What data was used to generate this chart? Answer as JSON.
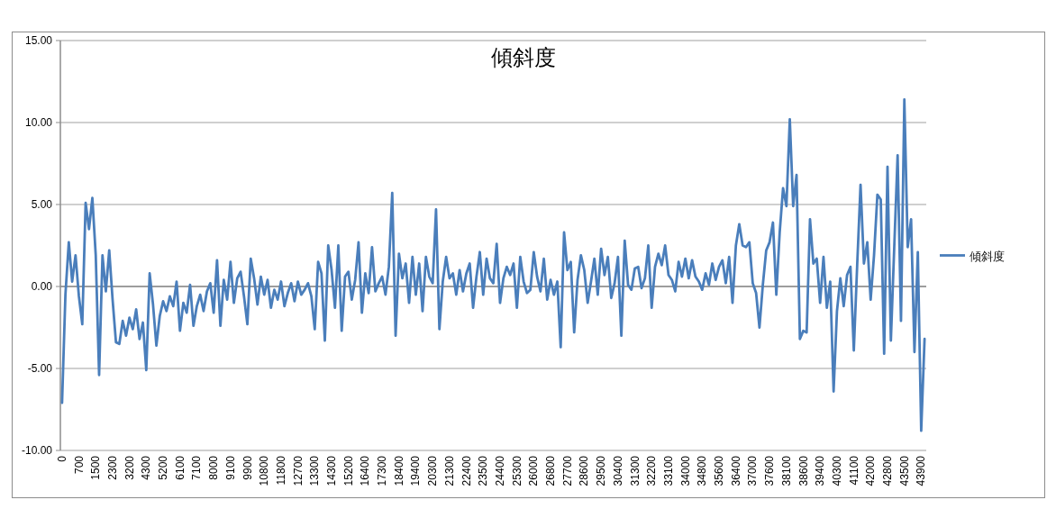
{
  "chart_data": {
    "type": "line",
    "title": "傾斜度",
    "categories": [
      "0",
      null,
      null,
      null,
      null,
      "700",
      null,
      null,
      null,
      null,
      "1500",
      null,
      null,
      null,
      null,
      "2300",
      null,
      null,
      null,
      null,
      "3200",
      null,
      null,
      null,
      null,
      "4300",
      null,
      null,
      null,
      null,
      "5200",
      null,
      null,
      null,
      null,
      "6100",
      null,
      null,
      null,
      null,
      "7100",
      null,
      null,
      null,
      null,
      "8000",
      null,
      null,
      null,
      null,
      "9100",
      null,
      null,
      null,
      null,
      "9900",
      null,
      null,
      null,
      null,
      "10800",
      null,
      null,
      null,
      null,
      "11800",
      null,
      null,
      null,
      null,
      "12700",
      null,
      null,
      null,
      null,
      "13300",
      null,
      null,
      null,
      null,
      "14300",
      null,
      null,
      null,
      null,
      "15200",
      null,
      null,
      null,
      null,
      "16400",
      null,
      null,
      null,
      null,
      "17300",
      null,
      null,
      null,
      null,
      "18400",
      null,
      null,
      null,
      null,
      "19400",
      null,
      null,
      null,
      null,
      "20300",
      null,
      null,
      null,
      null,
      "21300",
      null,
      null,
      null,
      null,
      "22400",
      null,
      null,
      null,
      null,
      "23500",
      null,
      null,
      null,
      null,
      "24400",
      null,
      null,
      null,
      null,
      "25300",
      null,
      null,
      null,
      null,
      "26000",
      null,
      null,
      null,
      null,
      "26800",
      null,
      null,
      null,
      null,
      "27700",
      null,
      null,
      null,
      null,
      "28600",
      null,
      null,
      null,
      null,
      "29500",
      null,
      null,
      null,
      null,
      "30400",
      null,
      null,
      null,
      null,
      "31300",
      null,
      null,
      null,
      null,
      "32200",
      null,
      null,
      null,
      null,
      "33100",
      null,
      null,
      null,
      null,
      "34000",
      null,
      null,
      null,
      null,
      "34800",
      null,
      null,
      null,
      null,
      "35600",
      null,
      null,
      null,
      null,
      "36400",
      null,
      null,
      null,
      null,
      "37000",
      null,
      null,
      null,
      null,
      "37600",
      null,
      null,
      null,
      null,
      "38100",
      null,
      null,
      null,
      null,
      "38600",
      null,
      null,
      null,
      null,
      "39400",
      null,
      null,
      null,
      null,
      "40300",
      null,
      null,
      null,
      null,
      "41100",
      null,
      null,
      null,
      null,
      "42000",
      null,
      null,
      null,
      null,
      "42800",
      null,
      null,
      null,
      null,
      "43500",
      null,
      null,
      null,
      null,
      "43900",
      null
    ],
    "series": [
      {
        "name": "傾斜度",
        "color": "#4a7ebb",
        "values": [
          -7.1,
          -0.5,
          2.7,
          0.3,
          1.9,
          -0.6,
          -2.3,
          5.1,
          3.5,
          5.4,
          1.9,
          -5.4,
          1.9,
          -0.3,
          2.2,
          -0.8,
          -3.4,
          -3.5,
          -2.1,
          -3.0,
          -1.9,
          -2.6,
          -1.4,
          -3.2,
          -2.2,
          -5.1,
          0.8,
          -1.1,
          -3.6,
          -1.8,
          -0.9,
          -1.5,
          -0.6,
          -1.2,
          0.3,
          -2.7,
          -1.0,
          -1.6,
          0.1,
          -2.4,
          -1.2,
          -0.5,
          -1.5,
          -0.3,
          0.2,
          -1.6,
          1.6,
          -2.4,
          0.4,
          -0.8,
          1.5,
          -1.0,
          0.5,
          0.9,
          -0.6,
          -2.3,
          1.7,
          0.5,
          -1.1,
          0.6,
          -0.5,
          0.4,
          -1.3,
          -0.2,
          -0.8,
          0.3,
          -1.2,
          -0.4,
          0.2,
          -0.9,
          0.3,
          -0.5,
          -0.2,
          0.2,
          -0.6,
          -2.6,
          1.5,
          0.8,
          -3.3,
          2.5,
          1.0,
          -1.3,
          2.5,
          -2.7,
          0.6,
          0.9,
          -0.8,
          0.4,
          2.7,
          -1.6,
          0.8,
          -0.4,
          2.4,
          -0.3,
          0.2,
          0.6,
          -0.5,
          1.2,
          5.7,
          -3.0,
          2.0,
          0.5,
          1.4,
          -1.0,
          1.8,
          -0.5,
          1.4,
          -1.5,
          1.8,
          0.6,
          0.2,
          4.7,
          -2.6,
          0.3,
          1.8,
          0.5,
          0.8,
          -0.5,
          1.0,
          -0.3,
          0.8,
          1.4,
          -1.3,
          0.6,
          2.1,
          -0.5,
          1.7,
          0.5,
          0.2,
          2.6,
          -1.0,
          0.5,
          1.2,
          0.7,
          1.4,
          -1.3,
          1.8,
          0.3,
          -0.4,
          -0.2,
          2.1,
          0.6,
          -0.3,
          1.7,
          -0.8,
          0.4,
          -0.5,
          0.3,
          -3.7,
          3.3,
          1.0,
          1.5,
          -2.8,
          0.4,
          1.9,
          1.0,
          -1.0,
          0.3,
          1.7,
          -0.5,
          2.3,
          0.7,
          1.8,
          -0.7,
          0.2,
          1.8,
          -3.0,
          2.8,
          0.1,
          -0.2,
          1.1,
          1.2,
          -0.1,
          0.5,
          2.5,
          -1.3,
          1.2,
          2.0,
          1.3,
          2.5,
          0.7,
          0.4,
          -0.3,
          1.5,
          0.6,
          1.7,
          0.5,
          1.6,
          0.6,
          0.3,
          -0.2,
          0.8,
          0.1,
          1.4,
          0.4,
          1.2,
          1.6,
          0.2,
          1.8,
          -1.0,
          2.5,
          3.8,
          2.5,
          2.4,
          2.7,
          0.2,
          -0.4,
          -2.5,
          0.1,
          2.2,
          2.7,
          3.9,
          -0.5,
          3.3,
          6.0,
          4.9,
          10.2,
          4.9,
          6.8,
          -3.2,
          -2.7,
          -2.8,
          4.1,
          1.4,
          1.7,
          -1.0,
          1.8,
          -1.3,
          0.3,
          -6.4,
          -1.5,
          0.5,
          -1.2,
          0.7,
          1.2,
          -3.9,
          1.3,
          6.2,
          1.4,
          2.7,
          -0.8,
          1.9,
          5.6,
          5.3,
          -4.1,
          7.3,
          -3.3,
          2.4,
          8.0,
          -2.1,
          11.4,
          2.4,
          4.1,
          -4.0,
          2.1,
          -8.8,
          -3.2
        ]
      }
    ],
    "ylim": [
      -10,
      15
    ],
    "yticks": [
      {
        "value": -10,
        "label": "-10.00"
      },
      {
        "value": -5,
        "label": "-5.00"
      },
      {
        "value": 0,
        "label": "0.00"
      },
      {
        "value": 5,
        "label": "5.00"
      },
      {
        "value": 10,
        "label": "10.00"
      },
      {
        "value": 15,
        "label": "15.00"
      }
    ],
    "grid": "y",
    "legend": "right"
  }
}
